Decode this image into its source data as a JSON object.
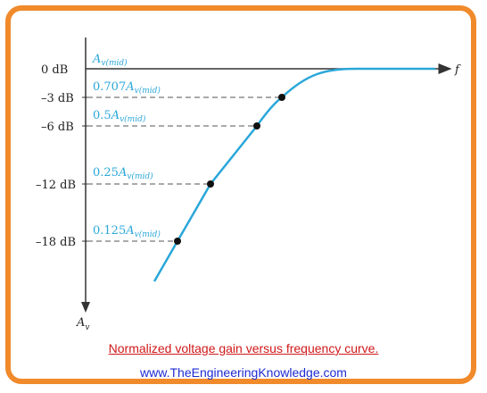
{
  "colors": {
    "frame": "#f08a2b",
    "curve": "#2aa7d9",
    "axis": "#333333",
    "caption_red": "#d0191a",
    "caption_blue": "#1d2bd1"
  },
  "axes": {
    "x_label": "f",
    "y_label_main": "A",
    "y_label_sub": "v"
  },
  "db_labels": [
    "0 dB",
    "–3 dB",
    "–6 dB",
    "–12 dB",
    "–18 dB"
  ],
  "gain_labels": {
    "mid_main": "A",
    "mid_sub": "v(mid)",
    "p707_coef": "0.707",
    "p5_coef": "0.5",
    "p25_coef": "0.25",
    "p125_coef": "0.125",
    "A": "A",
    "sub": "v(mid)"
  },
  "caption": "Normalized voltage gain versus frequency curve.",
  "website": "www.TheEngineeringKnowledge.com",
  "chart_data": {
    "type": "line",
    "xlabel": "f",
    "ylabel": "Av",
    "y_ticks": [
      0,
      -3,
      -6,
      -12,
      -18
    ],
    "marked_points": [
      {
        "label": "0.707Av(mid)",
        "db": -3
      },
      {
        "label": "0.5Av(mid)",
        "db": -6
      },
      {
        "label": "0.25Av(mid)",
        "db": -12
      },
      {
        "label": "0.125Av(mid)",
        "db": -18
      }
    ]
  }
}
